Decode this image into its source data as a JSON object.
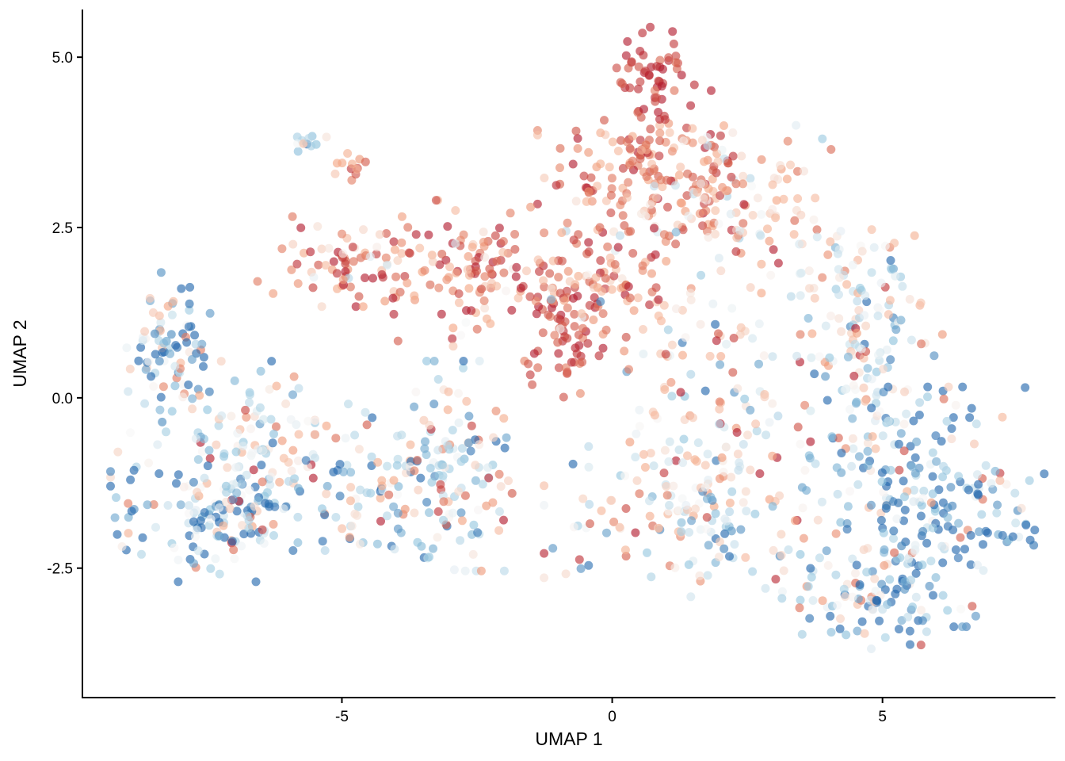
{
  "chart_data": {
    "type": "scatter",
    "title": "",
    "xlabel": "UMAP 1",
    "ylabel": "UMAP 2",
    "xlim": [
      -9.8,
      8.2
    ],
    "ylim": [
      -4.4,
      5.7
    ],
    "x_ticks": [
      -5,
      0,
      5
    ],
    "x_tick_labels": [
      "-5",
      "0",
      "5"
    ],
    "y_ticks": [
      -2.5,
      0,
      2.5,
      5
    ],
    "y_tick_labels": [
      "-2.5",
      "0.0",
      "2.5",
      "5.0"
    ],
    "grid": false,
    "legend": "none",
    "color_scale": {
      "name": "RdBu (reversed)",
      "low": "#2166ac",
      "mid": "#f7f7f7",
      "high": "#b2182b"
    },
    "clusters": [
      {
        "cx": 0.75,
        "cy": 4.85,
        "sx": 0.35,
        "sy": 0.35,
        "n": 45,
        "mu": 0.95,
        "sd": 0.05
      },
      {
        "cx": 0.6,
        "cy": 3.3,
        "sx": 0.9,
        "sy": 0.55,
        "n": 160,
        "mu": 0.85,
        "sd": 0.12
      },
      {
        "cx": 2.3,
        "cy": 2.9,
        "sx": 0.8,
        "sy": 0.5,
        "n": 120,
        "mu": 0.65,
        "sd": 0.18
      },
      {
        "cx": -0.9,
        "cy": 1.0,
        "sx": 0.35,
        "sy": 0.45,
        "n": 60,
        "mu": 0.92,
        "sd": 0.06
      },
      {
        "cx": -0.3,
        "cy": 1.7,
        "sx": 0.8,
        "sy": 0.5,
        "n": 110,
        "mu": 0.8,
        "sd": 0.15
      },
      {
        "cx": -2.5,
        "cy": 1.8,
        "sx": 0.7,
        "sy": 0.5,
        "n": 100,
        "mu": 0.82,
        "sd": 0.15
      },
      {
        "cx": -4.8,
        "cy": 2.0,
        "sx": 0.8,
        "sy": 0.3,
        "n": 80,
        "mu": 0.8,
        "sd": 0.15
      },
      {
        "cx": -5.7,
        "cy": 3.7,
        "sx": 0.2,
        "sy": 0.1,
        "n": 12,
        "mu": 0.4,
        "sd": 0.2
      },
      {
        "cx": -4.8,
        "cy": 3.35,
        "sx": 0.2,
        "sy": 0.12,
        "n": 12,
        "mu": 0.75,
        "sd": 0.15
      },
      {
        "cx": -8.1,
        "cy": 0.7,
        "sx": 0.4,
        "sy": 0.55,
        "n": 90,
        "mu": 0.35,
        "sd": 0.3
      },
      {
        "cx": -7.3,
        "cy": -1.6,
        "sx": 0.9,
        "sy": 0.5,
        "n": 170,
        "mu": 0.3,
        "sd": 0.35
      },
      {
        "cx": -6.6,
        "cy": -0.5,
        "sx": 0.5,
        "sy": 0.5,
        "n": 70,
        "mu": 0.5,
        "sd": 0.25
      },
      {
        "cx": -4.5,
        "cy": -1.3,
        "sx": 0.8,
        "sy": 0.55,
        "n": 100,
        "mu": 0.35,
        "sd": 0.3
      },
      {
        "cx": -2.8,
        "cy": -1.0,
        "sx": 0.55,
        "sy": 0.7,
        "n": 110,
        "mu": 0.45,
        "sd": 0.3
      },
      {
        "cx": 1.8,
        "cy": 0.3,
        "sx": 1.0,
        "sy": 0.6,
        "n": 90,
        "mu": 0.55,
        "sd": 0.25
      },
      {
        "cx": 1.6,
        "cy": -1.6,
        "sx": 1.3,
        "sy": 0.6,
        "n": 170,
        "mu": 0.5,
        "sd": 0.25
      },
      {
        "cx": 4.8,
        "cy": 0.4,
        "sx": 0.6,
        "sy": 0.9,
        "n": 120,
        "mu": 0.4,
        "sd": 0.25
      },
      {
        "cx": 5.9,
        "cy": -1.6,
        "sx": 1.1,
        "sy": 0.8,
        "n": 220,
        "mu": 0.2,
        "sd": 0.35
      },
      {
        "cx": 4.9,
        "cy": -3.0,
        "sx": 0.8,
        "sy": 0.35,
        "n": 90,
        "mu": 0.3,
        "sd": 0.3
      },
      {
        "cx": 4.3,
        "cy": 1.7,
        "sx": 0.7,
        "sy": 0.35,
        "n": 50,
        "mu": 0.5,
        "sd": 0.2
      }
    ]
  }
}
